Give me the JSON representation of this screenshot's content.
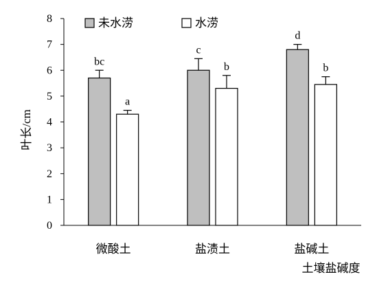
{
  "chart_data": {
    "type": "bar",
    "xlabel": "土壤盐碱度",
    "ylabel": "叶长/cm",
    "ylim": [
      0,
      8
    ],
    "yticks": [
      0,
      1,
      2,
      3,
      4,
      5,
      6,
      7,
      8
    ],
    "grid": false,
    "legend_position": "top-left",
    "categories": [
      "微酸土",
      "盐渍土",
      "盐碱土"
    ],
    "series": [
      {
        "name": "未水涝",
        "color": "#bfbfbf",
        "values": [
          5.7,
          6.0,
          6.8
        ],
        "errors": [
          0.3,
          0.45,
          0.2
        ],
        "labels": [
          "bc",
          "c",
          "d"
        ]
      },
      {
        "name": "水涝",
        "color": "#ffffff",
        "values": [
          4.3,
          5.3,
          5.45
        ],
        "errors": [
          0.15,
          0.5,
          0.3
        ],
        "labels": [
          "a",
          "b",
          "b"
        ]
      }
    ]
  }
}
